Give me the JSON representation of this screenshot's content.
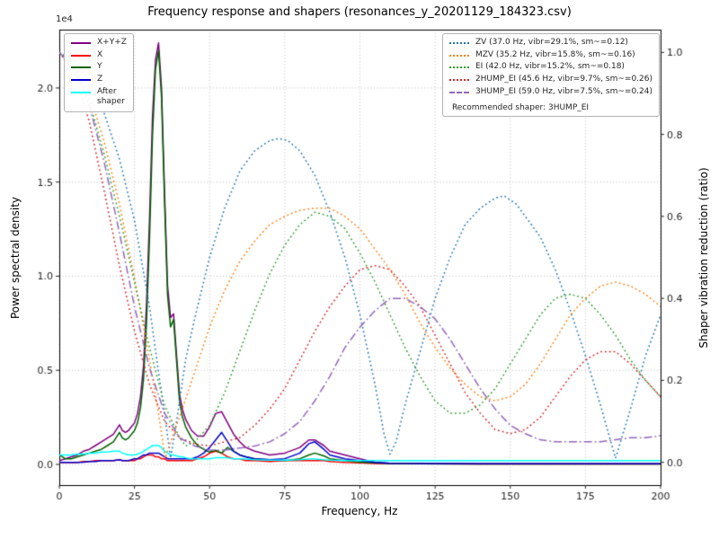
{
  "title": "Frequency response and shapers (resonances_y_20201129_184323.csv)",
  "axes": {
    "x_label": "Frequency, Hz",
    "y_left_label": "Power spectral density",
    "y_right_label": "Shaper vibration reduction (ratio)",
    "y_left_multiplier": "1e4"
  },
  "legend_note": "Recommended shaper: 3HUMP_EI",
  "chart_data": {
    "type": "line",
    "title": "Frequency response and shapers (resonances_y_20201129_184323.csv)",
    "xlabel": "Frequency, Hz",
    "ylabel_left": "Power spectral density",
    "ylabel_right": "Shaper vibration reduction (ratio)",
    "y_left_unit": "1e4",
    "grid": true,
    "legend_positions": {
      "psd": "upper left",
      "shapers": "upper right"
    },
    "xlim": [
      0,
      200
    ],
    "ylim_left": [
      -0.11,
      2.31
    ],
    "ylim_right": [
      -0.0555,
      1.0555
    ],
    "xticks": [
      0,
      25,
      50,
      75,
      100,
      125,
      150,
      175,
      200
    ],
    "yticks_left": [
      "0.0",
      "0.5",
      "1.0",
      "1.5",
      "2.0"
    ],
    "yticks_right": [
      "0.0",
      "0.2",
      "0.4",
      "0.6",
      "0.8",
      "1.0"
    ],
    "series": [
      {
        "name": "X+Y+Z",
        "label": "X+Y+Z",
        "axis": "left",
        "color": "#800080",
        "style": "solid",
        "x": [
          0,
          2,
          4,
          6,
          8,
          10,
          12,
          14,
          16,
          18,
          20,
          21,
          22,
          23,
          24,
          25,
          26,
          27,
          28,
          29,
          30,
          31,
          32,
          33,
          34,
          35,
          36,
          37,
          38,
          39,
          40,
          41,
          42,
          44,
          46,
          48,
          50,
          52,
          54,
          56,
          58,
          60,
          62,
          65,
          70,
          75,
          80,
          83,
          85,
          88,
          90,
          95,
          100,
          105,
          110,
          120,
          140,
          160,
          180,
          200
        ],
        "y": [
          0.02,
          0.03,
          0.04,
          0.05,
          0.07,
          0.08,
          0.1,
          0.12,
          0.14,
          0.16,
          0.21,
          0.18,
          0.17,
          0.18,
          0.2,
          0.22,
          0.27,
          0.36,
          0.52,
          0.85,
          1.3,
          1.85,
          2.15,
          2.24,
          2.0,
          1.45,
          0.95,
          0.78,
          0.8,
          0.58,
          0.37,
          0.29,
          0.24,
          0.18,
          0.15,
          0.15,
          0.2,
          0.27,
          0.28,
          0.22,
          0.16,
          0.12,
          0.09,
          0.07,
          0.05,
          0.06,
          0.09,
          0.13,
          0.13,
          0.1,
          0.07,
          0.05,
          0.03,
          0.012,
          0.006,
          0.004,
          0.003,
          0.003,
          0.003,
          0.003
        ]
      },
      {
        "name": "X",
        "label": "X",
        "axis": "left",
        "color": "#ff0000",
        "style": "solid",
        "x": [
          0,
          2,
          4,
          6,
          8,
          10,
          12,
          14,
          16,
          18,
          20,
          21,
          22,
          23,
          24,
          25,
          26,
          27,
          28,
          29,
          30,
          31,
          32,
          33,
          34,
          35,
          36,
          37,
          38,
          39,
          40,
          41,
          42,
          44,
          46,
          48,
          50,
          52,
          54,
          56,
          58,
          60,
          62,
          65,
          70,
          75,
          80,
          83,
          85,
          88,
          90,
          95,
          100,
          105,
          110,
          120,
          140,
          160,
          180,
          200
        ],
        "y": [
          0.01,
          0.01,
          0.01,
          0.01,
          0.015,
          0.015,
          0.02,
          0.02,
          0.02,
          0.02,
          0.025,
          0.02,
          0.02,
          0.02,
          0.02,
          0.02,
          0.03,
          0.03,
          0.04,
          0.05,
          0.05,
          0.05,
          0.04,
          0.04,
          0.03,
          0.03,
          0.02,
          0.02,
          0.02,
          0.02,
          0.02,
          0.02,
          0.02,
          0.02,
          0.03,
          0.04,
          0.06,
          0.07,
          0.06,
          0.04,
          0.03,
          0.03,
          0.02,
          0.02,
          0.015,
          0.02,
          0.02,
          0.02,
          0.02,
          0.02,
          0.015,
          0.01,
          0.008,
          0.005,
          0.004,
          0.003,
          0.002,
          0.002,
          0.002,
          0.002
        ]
      },
      {
        "name": "Y",
        "label": "Y",
        "axis": "left",
        "color": "#006400",
        "style": "solid",
        "x": [
          0,
          2,
          4,
          6,
          8,
          10,
          12,
          14,
          16,
          18,
          20,
          21,
          22,
          23,
          24,
          25,
          26,
          27,
          28,
          29,
          30,
          31,
          32,
          33,
          34,
          35,
          36,
          37,
          38,
          39,
          40,
          41,
          42,
          44,
          46,
          48,
          50,
          52,
          54,
          56,
          58,
          60,
          62,
          65,
          70,
          75,
          80,
          83,
          85,
          88,
          90,
          95,
          100,
          105,
          110,
          120,
          140,
          160,
          180,
          200
        ],
        "y": [
          0.05,
          0.03,
          0.03,
          0.04,
          0.05,
          0.06,
          0.07,
          0.08,
          0.1,
          0.12,
          0.17,
          0.14,
          0.13,
          0.14,
          0.16,
          0.18,
          0.22,
          0.3,
          0.45,
          0.75,
          1.2,
          1.75,
          2.1,
          2.2,
          1.95,
          1.4,
          0.9,
          0.73,
          0.77,
          0.55,
          0.33,
          0.25,
          0.2,
          0.14,
          0.1,
          0.08,
          0.065,
          0.075,
          0.06,
          0.09,
          0.07,
          0.05,
          0.04,
          0.03,
          0.025,
          0.02,
          0.03,
          0.05,
          0.06,
          0.045,
          0.03,
          0.02,
          0.012,
          0.008,
          0.005,
          0.003,
          0.002,
          0.002,
          0.002,
          0.002
        ]
      },
      {
        "name": "Z",
        "label": "Z",
        "axis": "left",
        "color": "#0000cd",
        "style": "solid",
        "x": [
          0,
          2,
          4,
          6,
          8,
          10,
          12,
          14,
          16,
          18,
          20,
          21,
          22,
          23,
          24,
          25,
          26,
          27,
          28,
          29,
          30,
          31,
          32,
          33,
          34,
          35,
          36,
          37,
          38,
          39,
          40,
          41,
          42,
          44,
          46,
          48,
          50,
          52,
          54,
          56,
          58,
          60,
          62,
          65,
          70,
          75,
          80,
          83,
          85,
          88,
          90,
          95,
          100,
          105,
          110,
          120,
          140,
          160,
          180,
          200
        ],
        "y": [
          0.01,
          0.01,
          0.01,
          0.01,
          0.012,
          0.015,
          0.015,
          0.02,
          0.02,
          0.02,
          0.025,
          0.02,
          0.02,
          0.02,
          0.025,
          0.03,
          0.03,
          0.04,
          0.05,
          0.05,
          0.06,
          0.06,
          0.06,
          0.06,
          0.05,
          0.04,
          0.03,
          0.03,
          0.03,
          0.03,
          0.03,
          0.03,
          0.03,
          0.03,
          0.04,
          0.06,
          0.09,
          0.13,
          0.17,
          0.12,
          0.07,
          0.05,
          0.04,
          0.03,
          0.025,
          0.03,
          0.06,
          0.11,
          0.12,
          0.08,
          0.05,
          0.03,
          0.02,
          0.01,
          0.006,
          0.004,
          0.003,
          0.003,
          0.003,
          0.003
        ]
      },
      {
        "name": "After shaper",
        "label": "After\nshaper",
        "axis": "left",
        "color": "#00ffff",
        "style": "solid",
        "x": [
          0,
          2,
          4,
          6,
          8,
          10,
          12,
          14,
          16,
          18,
          20,
          21,
          22,
          23,
          24,
          25,
          26,
          27,
          28,
          29,
          30,
          31,
          32,
          33,
          34,
          35,
          36,
          37,
          38,
          39,
          40,
          41,
          42,
          44,
          46,
          48,
          50,
          52,
          54,
          56,
          58,
          60,
          62,
          65,
          70,
          75,
          80,
          83,
          85,
          88,
          90,
          95,
          100,
          105,
          110,
          120,
          140,
          160,
          180,
          200
        ],
        "y": [
          0.05,
          0.05,
          0.05,
          0.055,
          0.055,
          0.06,
          0.06,
          0.065,
          0.065,
          0.07,
          0.07,
          0.06,
          0.055,
          0.05,
          0.05,
          0.05,
          0.055,
          0.06,
          0.07,
          0.08,
          0.09,
          0.1,
          0.1,
          0.1,
          0.09,
          0.07,
          0.06,
          0.05,
          0.05,
          0.045,
          0.04,
          0.04,
          0.035,
          0.03,
          0.03,
          0.03,
          0.03,
          0.035,
          0.035,
          0.035,
          0.03,
          0.03,
          0.028,
          0.025,
          0.022,
          0.022,
          0.025,
          0.028,
          0.028,
          0.025,
          0.022,
          0.02,
          0.02,
          0.02,
          0.02,
          0.02,
          0.02,
          0.02,
          0.02,
          0.02
        ]
      },
      {
        "name": "ZV",
        "label": "ZV (37.0 Hz, vibr=29.1%, sm~=0.12)",
        "axis": "right",
        "color": "#1f77b4",
        "style": "dotted",
        "x": [
          0,
          5,
          10,
          15,
          20,
          25,
          30,
          33,
          35,
          37,
          39,
          42,
          45,
          50,
          55,
          60,
          65,
          70,
          73,
          76,
          80,
          85,
          90,
          95,
          100,
          105,
          108,
          110,
          112,
          115,
          120,
          125,
          130,
          135,
          140,
          145,
          148,
          152,
          156,
          160,
          165,
          170,
          175,
          180,
          185,
          190,
          195,
          200
        ],
        "y": [
          1.0,
          0.98,
          0.93,
          0.85,
          0.74,
          0.59,
          0.38,
          0.22,
          0.12,
          0.01,
          0.1,
          0.25,
          0.35,
          0.5,
          0.62,
          0.71,
          0.76,
          0.785,
          0.79,
          0.785,
          0.76,
          0.7,
          0.61,
          0.5,
          0.36,
          0.19,
          0.07,
          0.02,
          0.05,
          0.14,
          0.27,
          0.4,
          0.5,
          0.58,
          0.62,
          0.645,
          0.65,
          0.63,
          0.59,
          0.55,
          0.47,
          0.37,
          0.26,
          0.14,
          0.01,
          0.13,
          0.26,
          0.36
        ]
      },
      {
        "name": "MZV",
        "label": "MZV (35.2 Hz, vibr=15.8%, sm~=0.16)",
        "axis": "right",
        "color": "#ff7f0e",
        "style": "dotted",
        "x": [
          0,
          5,
          10,
          15,
          20,
          25,
          30,
          33,
          35.2,
          38,
          40,
          45,
          50,
          55,
          60,
          65,
          70,
          75,
          80,
          85,
          90,
          95,
          100,
          105,
          110,
          115,
          120,
          125,
          130,
          135,
          140,
          145,
          150,
          155,
          160,
          165,
          170,
          175,
          180,
          185,
          190,
          195,
          200
        ],
        "y": [
          1.0,
          0.97,
          0.9,
          0.78,
          0.63,
          0.45,
          0.25,
          0.12,
          0.01,
          0.07,
          0.11,
          0.22,
          0.33,
          0.42,
          0.49,
          0.54,
          0.58,
          0.6,
          0.615,
          0.62,
          0.62,
          0.6,
          0.57,
          0.52,
          0.47,
          0.41,
          0.34,
          0.28,
          0.23,
          0.19,
          0.16,
          0.15,
          0.16,
          0.19,
          0.24,
          0.3,
          0.36,
          0.4,
          0.43,
          0.44,
          0.43,
          0.41,
          0.38
        ]
      },
      {
        "name": "EI",
        "label": "EI (42.0 Hz, vibr=15.2%, sm~=0.18)",
        "axis": "right",
        "color": "#2ca02c",
        "style": "dotted",
        "x": [
          0,
          5,
          10,
          15,
          20,
          25,
          30,
          35,
          40,
          42,
          45,
          50,
          55,
          60,
          65,
          70,
          75,
          80,
          85,
          90,
          95,
          100,
          105,
          110,
          115,
          120,
          125,
          130,
          135,
          140,
          145,
          150,
          155,
          160,
          165,
          170,
          175,
          180,
          185,
          190,
          195,
          200
        ],
        "y": [
          1.0,
          0.97,
          0.88,
          0.75,
          0.6,
          0.44,
          0.28,
          0.14,
          0.06,
          0.04,
          0.05,
          0.09,
          0.17,
          0.27,
          0.37,
          0.46,
          0.53,
          0.58,
          0.61,
          0.6,
          0.57,
          0.51,
          0.44,
          0.36,
          0.28,
          0.21,
          0.15,
          0.12,
          0.12,
          0.14,
          0.18,
          0.24,
          0.3,
          0.36,
          0.4,
          0.41,
          0.4,
          0.36,
          0.31,
          0.25,
          0.2,
          0.16
        ]
      },
      {
        "name": "2HUMP_EI",
        "label": "2HUMP_EI (45.6 Hz, vibr=9.7%, sm~=0.26)",
        "axis": "right",
        "color": "#d62728",
        "style": "dotted",
        "x": [
          0,
          5,
          10,
          15,
          20,
          25,
          30,
          35,
          40,
          45,
          50,
          55,
          60,
          65,
          70,
          75,
          80,
          85,
          90,
          95,
          100,
          105,
          110,
          115,
          120,
          125,
          130,
          135,
          140,
          145,
          150,
          155,
          160,
          165,
          170,
          175,
          180,
          185,
          190,
          195,
          200
        ],
        "y": [
          1.0,
          0.95,
          0.83,
          0.66,
          0.48,
          0.32,
          0.19,
          0.1,
          0.06,
          0.045,
          0.04,
          0.05,
          0.06,
          0.09,
          0.13,
          0.18,
          0.25,
          0.32,
          0.38,
          0.43,
          0.47,
          0.48,
          0.47,
          0.43,
          0.38,
          0.31,
          0.24,
          0.17,
          0.12,
          0.08,
          0.07,
          0.08,
          0.11,
          0.16,
          0.21,
          0.25,
          0.27,
          0.27,
          0.24,
          0.2,
          0.16
        ]
      },
      {
        "name": "3HUMP_EI",
        "label": "3HUMP_EI (59.0 Hz, vibr=7.5%, sm~=0.24)",
        "axis": "right",
        "color": "#9467bd",
        "style": "dashdot",
        "x": [
          0,
          5,
          10,
          15,
          20,
          25,
          30,
          35,
          40,
          45,
          50,
          55,
          60,
          65,
          70,
          75,
          80,
          85,
          90,
          95,
          100,
          105,
          110,
          115,
          120,
          125,
          130,
          135,
          140,
          145,
          150,
          155,
          160,
          165,
          170,
          175,
          180,
          185,
          190,
          195,
          200
        ],
        "y": [
          1.0,
          0.96,
          0.87,
          0.73,
          0.56,
          0.38,
          0.23,
          0.12,
          0.06,
          0.04,
          0.03,
          0.03,
          0.035,
          0.04,
          0.05,
          0.07,
          0.1,
          0.15,
          0.21,
          0.28,
          0.33,
          0.37,
          0.4,
          0.4,
          0.38,
          0.35,
          0.3,
          0.24,
          0.18,
          0.13,
          0.09,
          0.07,
          0.055,
          0.05,
          0.05,
          0.05,
          0.05,
          0.055,
          0.06,
          0.06,
          0.065
        ]
      }
    ]
  }
}
